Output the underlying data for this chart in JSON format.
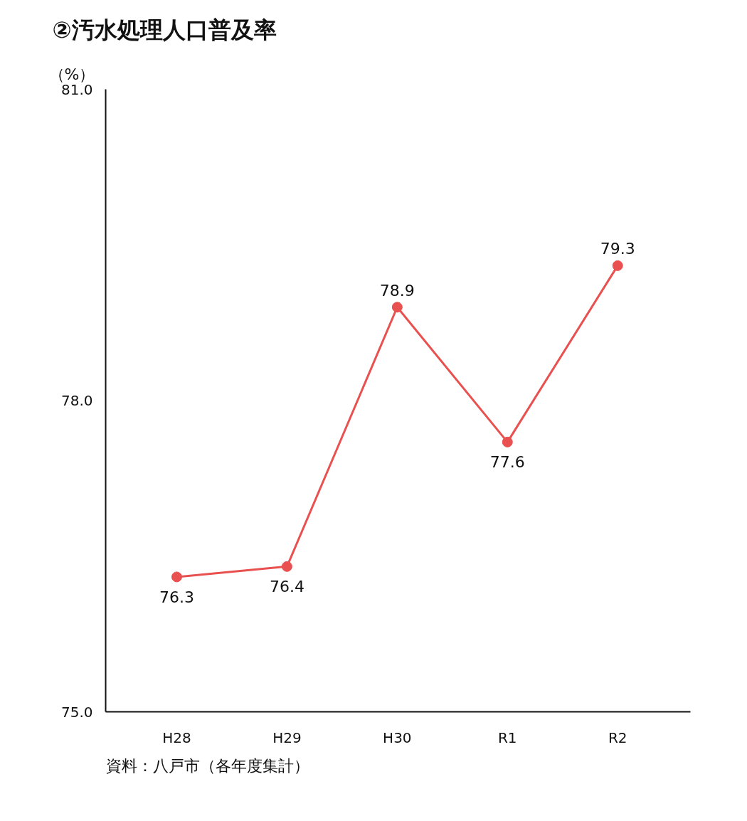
{
  "chart_data": {
    "type": "line",
    "title": "②汚水処理人口普及率",
    "ylabel": "（%）",
    "categories": [
      "H28",
      "H29",
      "H30",
      "R1",
      "R2"
    ],
    "series": [
      {
        "color": "#e8514f",
        "values": [
          76.3,
          76.4,
          78.9,
          77.6,
          79.3
        ]
      }
    ],
    "ylim": [
      75.0,
      81.0
    ],
    "yticks": [
      {
        "value": 75,
        "label": "75.0"
      },
      {
        "value": 78,
        "label": "78.0"
      },
      {
        "value": 81,
        "label": "81.0"
      }
    ],
    "data_labels": true,
    "marker": "circle",
    "grid": false,
    "annotations": [
      "資料：八戸市（各年度集計）"
    ]
  }
}
